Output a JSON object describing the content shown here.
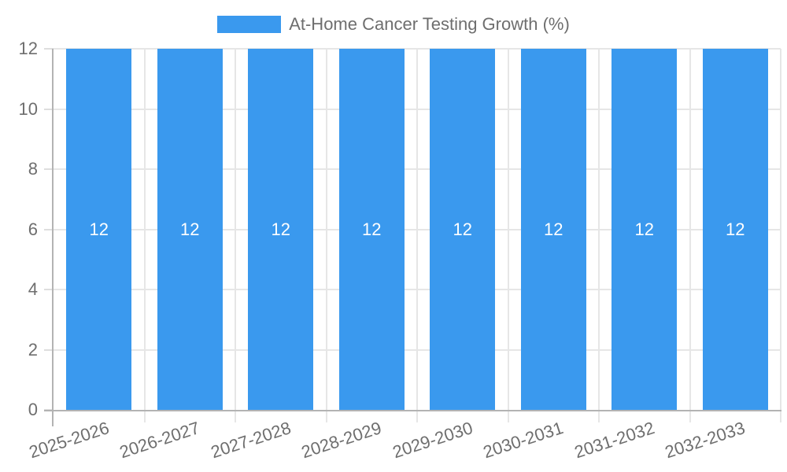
{
  "chart_data": {
    "type": "bar",
    "title": "At-Home Cancer Testing Growth (%)",
    "categories": [
      "2025-2026",
      "2026-2027",
      "2027-2028",
      "2028-2029",
      "2029-2030",
      "2030-2031",
      "2031-2032",
      "2032-2033"
    ],
    "series": [
      {
        "name": "At-Home Cancer Testing Growth (%)",
        "values": [
          12,
          12,
          12,
          12,
          12,
          12,
          12,
          12
        ]
      }
    ],
    "bar_value_labels": [
      "12",
      "12",
      "12",
      "12",
      "12",
      "12",
      "12",
      "12"
    ],
    "xlabel": "",
    "ylabel": "",
    "ylim": [
      0,
      12
    ],
    "yticks": [
      0,
      2,
      4,
      6,
      8,
      10,
      12
    ],
    "grid": true,
    "legend_position": "top",
    "colors": {
      "bar": "#3a99ee",
      "bar_label_text": "#ffffff",
      "axis_tick_text": "#6e6e6e",
      "legend_text": "#6e6e6e",
      "gridline": "#e6e6e6",
      "tick_mark": "#dedede",
      "axis_line": "#b3b3b3",
      "background": "#ffffff"
    }
  }
}
